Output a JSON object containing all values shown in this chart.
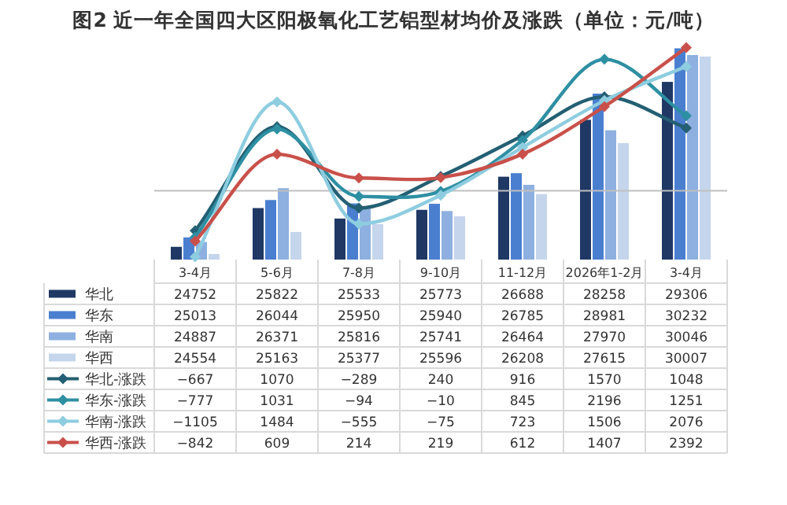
{
  "chart_data": {
    "type": "bar",
    "title": "图2  近一年全国四大区阳极氧化工艺铝型材均价及涨跌（单位：元/吨）",
    "categories": [
      "3-4月",
      "5-6月",
      "7-8月",
      "9-10月",
      "11-12月",
      "2026年1-2月",
      "3-4月"
    ],
    "ylim": [
      24400,
      30350
    ],
    "y2lim": [
      -1150,
      2450
    ],
    "tick_labels": "x",
    "data_labels": true,
    "legend": "bottom",
    "marker": "diamond",
    "series": [
      {
        "name": "华北",
        "color": "#1f3864",
        "values": [
          24752,
          25822,
          25533,
          25773,
          26688,
          28258,
          29306
        ]
      },
      {
        "name": "华东",
        "color": "#4a7fd0",
        "values": [
          25013,
          26044,
          25950,
          25940,
          26785,
          28981,
          30232
        ]
      },
      {
        "name": "华南",
        "color": "#8eb0e0",
        "values": [
          24887,
          26371,
          25816,
          25741,
          26464,
          27970,
          30046
        ]
      },
      {
        "name": "华西",
        "color": "#c5d5ec",
        "values": [
          24554,
          25163,
          25377,
          25596,
          26208,
          27615,
          30007
        ]
      },
      {
        "name": "华北-涨跌",
        "type": "line",
        "axis": "y2",
        "color": "#245f73",
        "values": [
          -667,
          1070,
          -289,
          240,
          916,
          1570,
          1048
        ]
      },
      {
        "name": "华东-涨跌",
        "type": "line",
        "axis": "y2",
        "color": "#2e8fa3",
        "values": [
          -777,
          1031,
          -94,
          -10,
          845,
          2196,
          1251
        ]
      },
      {
        "name": "华南-涨跌",
        "type": "line",
        "axis": "y2",
        "color": "#8ecde0",
        "values": [
          -1105,
          1484,
          -555,
          -75,
          723,
          1506,
          2076
        ]
      },
      {
        "name": "华西-涨跌",
        "type": "line",
        "axis": "y2",
        "color": "#c9504a",
        "values": [
          -842,
          609,
          214,
          219,
          612,
          1407,
          2392
        ]
      }
    ]
  }
}
